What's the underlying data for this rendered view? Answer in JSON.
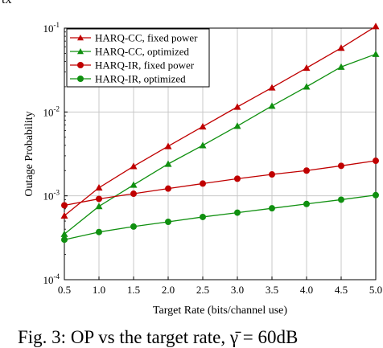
{
  "page_head": "tx",
  "caption": "Fig. 3: OP vs the target rate, γ̄ = 60dB",
  "chart_data": {
    "type": "line",
    "xlabel": "Target Rate (bits/channel use)",
    "ylabel": "Outage Probability",
    "x": [
      0.5,
      1.0,
      1.5,
      2.0,
      2.5,
      3.0,
      3.5,
      4.0,
      4.5,
      5.0
    ],
    "xlim": [
      0.5,
      5.0
    ],
    "ylim": [
      0.0001,
      0.1
    ],
    "yscale": "log",
    "x_ticks": [
      "0.5",
      "1.0",
      "1.5",
      "2.0",
      "2.5",
      "3.0",
      "3.5",
      "4.0",
      "4.5",
      "5.0"
    ],
    "y_ticks": [
      {
        "base": "10",
        "exp": "-1"
      },
      {
        "base": "10",
        "exp": "-2"
      },
      {
        "base": "10",
        "exp": "-3"
      },
      {
        "base": "10",
        "exp": "-4"
      }
    ],
    "grid": true,
    "legend_position": "top-left",
    "series": [
      {
        "name": "HARQ-CC, fixed power",
        "color": "#c00000",
        "marker": "triangle",
        "values": [
          0.00058,
          0.00125,
          0.00225,
          0.0039,
          0.0067,
          0.0115,
          0.0195,
          0.0335,
          0.058,
          0.105
        ]
      },
      {
        "name": "HARQ-CC, optimized",
        "color": "#109010",
        "marker": "triangle",
        "values": [
          0.00035,
          0.00075,
          0.00135,
          0.0024,
          0.004,
          0.0068,
          0.0118,
          0.02,
          0.0345,
          0.049
        ]
      },
      {
        "name": "HARQ-IR, fixed power",
        "color": "#c00000",
        "marker": "circle",
        "values": [
          0.00077,
          0.00092,
          0.00106,
          0.00122,
          0.0014,
          0.0016,
          0.0018,
          0.002,
          0.00228,
          0.00262
        ]
      },
      {
        "name": "HARQ-IR, optimized",
        "color": "#109010",
        "marker": "circle",
        "values": [
          0.0003,
          0.00037,
          0.00043,
          0.00049,
          0.00056,
          0.00063,
          0.00071,
          0.0008,
          0.0009,
          0.00102
        ]
      }
    ]
  }
}
